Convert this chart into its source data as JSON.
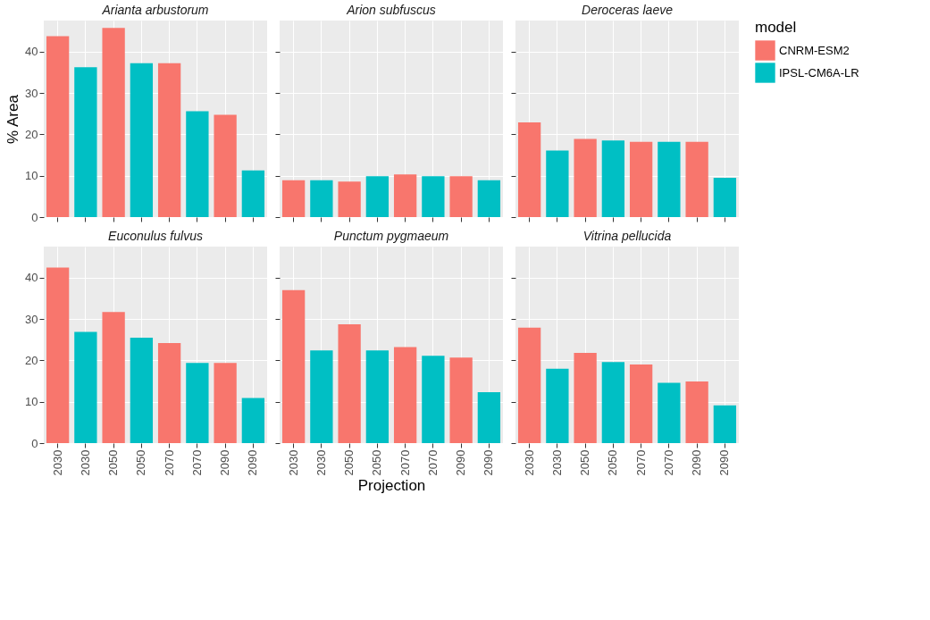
{
  "chart_data": [
    {
      "type": "bar",
      "title": "Arianta arbustorum",
      "ylabel": "% Area",
      "categories": [
        "2030",
        "2030",
        "2050",
        "2050",
        "2070",
        "2070",
        "2090",
        "2090"
      ],
      "ylim": [
        0,
        47.5
      ],
      "yticks": [
        0,
        10,
        20,
        30,
        40
      ],
      "grid": true,
      "tick_labels": "y",
      "series": [
        {
          "color": "#f8766d",
          "values": [
            43.7,
            null,
            45.7,
            null,
            37.2,
            null,
            24.7,
            null
          ]
        },
        {
          "color": "#00bfc4",
          "values": [
            null,
            36.2,
            null,
            37.2,
            null,
            25.6,
            null,
            11.3
          ]
        }
      ]
    },
    {
      "type": "bar",
      "title": "Arion subfuscus",
      "categories": [
        "2030",
        "2030",
        "2050",
        "2050",
        "2070",
        "2070",
        "2090",
        "2090"
      ],
      "ylim": [
        0,
        47.5
      ],
      "yticks": [
        0,
        10,
        20,
        30,
        40
      ],
      "grid": true,
      "tick_labels": false,
      "series": [
        {
          "color": "#f8766d",
          "values": [
            8.9,
            null,
            8.6,
            null,
            10.3,
            null,
            9.9,
            null
          ]
        },
        {
          "color": "#00bfc4",
          "values": [
            null,
            8.9,
            null,
            9.9,
            null,
            9.9,
            null,
            8.9
          ]
        }
      ]
    },
    {
      "type": "bar",
      "title": "Deroceras laeve",
      "categories": [
        "2030",
        "2030",
        "2050",
        "2050",
        "2070",
        "2070",
        "2090",
        "2090"
      ],
      "ylim": [
        0,
        47.5
      ],
      "yticks": [
        0,
        10,
        20,
        30,
        40
      ],
      "grid": true,
      "tick_labels": false,
      "legend": "right",
      "legend_title": "model",
      "series": [
        {
          "name": "CNRM-ESM2",
          "color": "#f8766d",
          "values": [
            22.9,
            null,
            18.9,
            null,
            18.2,
            null,
            18.2,
            null
          ]
        },
        {
          "name": "IPSL-CM6A-LR",
          "color": "#00bfc4",
          "values": [
            null,
            16.1,
            null,
            18.5,
            null,
            18.2,
            null,
            9.5
          ]
        }
      ]
    },
    {
      "type": "bar",
      "title": "Euconulus fulvus",
      "categories": [
        "2030",
        "2030",
        "2050",
        "2050",
        "2070",
        "2070",
        "2090",
        "2090"
      ],
      "ylim": [
        0,
        47.5
      ],
      "yticks": [
        0,
        10,
        20,
        30,
        40
      ],
      "grid": true,
      "series": [
        {
          "color": "#f8766d",
          "values": [
            42.4,
            null,
            31.7,
            null,
            24.2,
            null,
            19.4,
            null
          ]
        },
        {
          "color": "#00bfc4",
          "values": [
            null,
            26.9,
            null,
            25.5,
            null,
            19.4,
            null,
            10.9
          ]
        }
      ]
    },
    {
      "type": "bar",
      "title": "Punctum pygmaeum",
      "xlabel": "Projection",
      "categories": [
        "2030",
        "2030",
        "2050",
        "2050",
        "2070",
        "2070",
        "2090",
        "2090"
      ],
      "ylim": [
        0,
        47.5
      ],
      "yticks": [
        0,
        10,
        20,
        30,
        40
      ],
      "grid": true,
      "tick_labels": "x",
      "series": [
        {
          "color": "#f8766d",
          "values": [
            37.0,
            null,
            28.7,
            null,
            23.2,
            null,
            20.7,
            null
          ]
        },
        {
          "color": "#00bfc4",
          "values": [
            null,
            22.4,
            null,
            22.4,
            null,
            21.1,
            null,
            12.3
          ]
        }
      ]
    },
    {
      "type": "bar",
      "title": "Vitrina pellucida",
      "categories": [
        "2030",
        "2030",
        "2050",
        "2050",
        "2070",
        "2070",
        "2090",
        "2090"
      ],
      "ylim": [
        0,
        47.5
      ],
      "yticks": [
        0,
        10,
        20,
        30,
        40
      ],
      "grid": true,
      "tick_labels": "x",
      "series": [
        {
          "color": "#f8766d",
          "values": [
            27.9,
            null,
            21.8,
            null,
            19.0,
            null,
            14.9,
            null
          ]
        },
        {
          "color": "#00bfc4",
          "values": [
            null,
            18.0,
            null,
            19.6,
            null,
            14.6,
            null,
            9.1
          ]
        }
      ]
    }
  ]
}
